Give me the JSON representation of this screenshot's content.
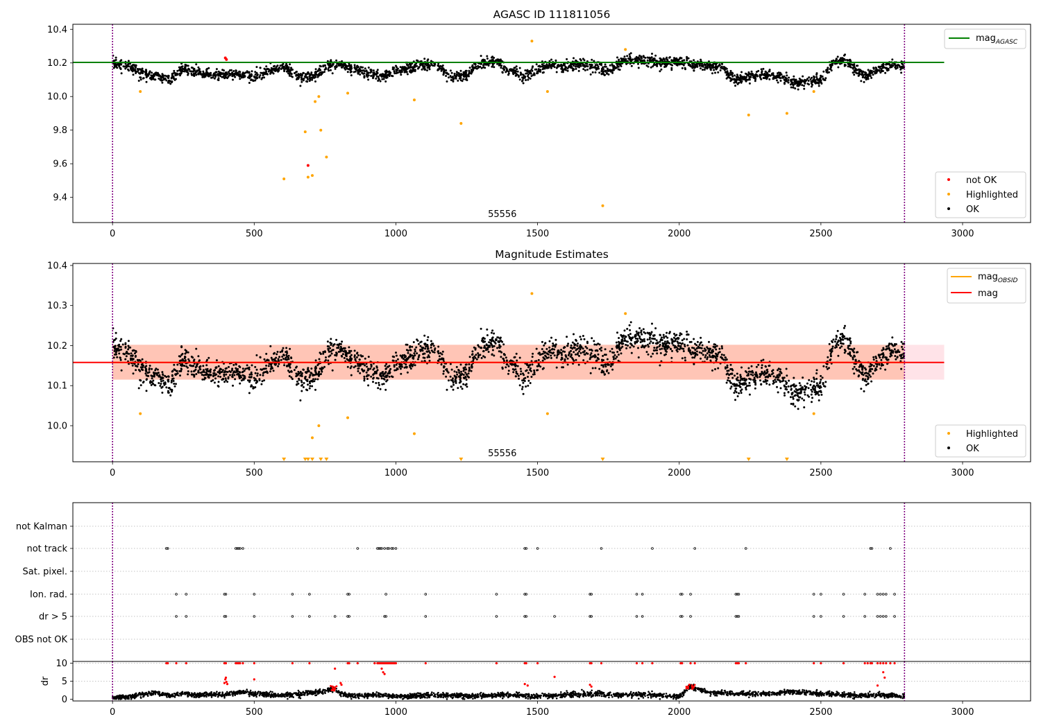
{
  "figure": {
    "colors": {
      "ok": "#000000",
      "highlighted": "#ffa500",
      "not_ok": "#ff0000",
      "agasc_line": "#008000",
      "obsid_line": "#ffa500",
      "mag_line": "#ff0000",
      "band_pink": "#ffc0cb",
      "band_orange": "#ffa07a",
      "obs_boundary": "#800080"
    }
  },
  "chart_data": [
    {
      "type": "scatter",
      "title": "AGASC ID 111811056",
      "xlabel": "",
      "ylabel": "",
      "xlim": [
        -140,
        3240
      ],
      "ylim": [
        9.25,
        10.43
      ],
      "xticks": [
        0,
        500,
        1000,
        1500,
        2000,
        2500,
        3000
      ],
      "yticks": [
        9.4,
        9.6,
        9.8,
        10.0,
        10.2,
        10.4
      ],
      "ytick_labels": [
        "9.4",
        "9.6",
        "9.8",
        "10.0",
        "10.2",
        "10.4"
      ],
      "obs_boundaries": [
        0,
        2795
      ],
      "obsid_annotation": {
        "text": "55556",
        "x": 1400
      },
      "reference_lines": [
        {
          "name": "mag_AGASC",
          "y": 10.203,
          "x0": -140,
          "x1": 2935
        }
      ],
      "ok_trend": {
        "x": [
          0,
          50,
          100,
          150,
          200,
          250,
          300,
          350,
          400,
          450,
          500,
          550,
          600,
          650,
          700,
          750,
          800,
          850,
          900,
          950,
          1000,
          1050,
          1100,
          1150,
          1200,
          1250,
          1300,
          1350,
          1400,
          1450,
          1500,
          1550,
          1600,
          1650,
          1700,
          1750,
          1800,
          1850,
          1900,
          1950,
          2000,
          2050,
          2100,
          2150,
          2200,
          2250,
          2300,
          2350,
          2400,
          2450,
          2500,
          2550,
          2600,
          2650,
          2700,
          2750,
          2795
        ],
        "y": [
          10.2,
          10.19,
          10.14,
          10.12,
          10.1,
          10.17,
          10.14,
          10.13,
          10.13,
          10.13,
          10.12,
          10.15,
          10.18,
          10.12,
          10.11,
          10.17,
          10.19,
          10.16,
          10.14,
          10.12,
          10.15,
          10.17,
          10.19,
          10.18,
          10.11,
          10.13,
          10.2,
          10.21,
          10.16,
          10.12,
          10.16,
          10.19,
          10.17,
          10.2,
          10.17,
          10.15,
          10.22,
          10.22,
          10.21,
          10.2,
          10.21,
          10.19,
          10.18,
          10.17,
          10.1,
          10.12,
          10.13,
          10.12,
          10.08,
          10.09,
          10.1,
          10.21,
          10.2,
          10.12,
          10.16,
          10.19,
          10.17
        ],
        "spread": 0.016,
        "n_points": 2700
      },
      "series": [
        {
          "name": "not OK",
          "x": [
            398,
            402,
            690
          ],
          "y": [
            10.23,
            10.22,
            9.59
          ]
        },
        {
          "name": "Highlighted",
          "x": [
            98,
            605,
            680,
            690,
            705,
            715,
            728,
            735,
            755,
            830,
            1065,
            1230,
            1480,
            1535,
            1730,
            1810,
            2245,
            2380,
            2475
          ],
          "y": [
            10.03,
            9.51,
            9.79,
            9.52,
            9.53,
            9.97,
            10.0,
            9.8,
            9.64,
            10.02,
            9.98,
            9.84,
            10.33,
            10.03,
            9.35,
            10.28,
            9.89,
            9.9,
            10.03
          ]
        }
      ],
      "legends": [
        {
          "entries": [
            "mag$_{AGASC}$"
          ],
          "position": "upper right"
        },
        {
          "entries": [
            "not OK",
            "Highlighted",
            "OK"
          ],
          "position": "lower right"
        }
      ]
    },
    {
      "type": "scatter",
      "title": "Magnitude Estimates",
      "xlabel": "",
      "ylabel": "",
      "xlim": [
        -140,
        3240
      ],
      "ylim": [
        9.91,
        10.405
      ],
      "xticks": [
        0,
        500,
        1000,
        1500,
        2000,
        2500,
        3000
      ],
      "yticks": [
        10.0,
        10.1,
        10.2,
        10.3,
        10.4
      ],
      "ytick_labels": [
        "10.0",
        "10.1",
        "10.2",
        "10.3",
        "10.4"
      ],
      "obs_boundaries": [
        0,
        2795
      ],
      "obsid_annotation": {
        "text": "55556",
        "x": 1400
      },
      "reference_lines": [
        {
          "name": "mag",
          "y": 10.158,
          "x0": -140,
          "x1": 2935
        }
      ],
      "mag_band": {
        "x0": 0,
        "x1": 2935,
        "y0": 10.115,
        "y1": 10.202
      },
      "obsid_band": {
        "x0": 0,
        "x1": 2795,
        "y0": 10.115,
        "y1": 10.202
      },
      "obsid_line": {
        "y": 10.158,
        "x0": 0,
        "x1": 2795
      },
      "ok_trend": {
        "x": [
          0,
          50,
          100,
          150,
          200,
          250,
          300,
          350,
          400,
          450,
          500,
          550,
          600,
          650,
          700,
          750,
          800,
          850,
          900,
          950,
          1000,
          1050,
          1100,
          1150,
          1200,
          1250,
          1300,
          1350,
          1400,
          1450,
          1500,
          1550,
          1600,
          1650,
          1700,
          1750,
          1800,
          1850,
          1900,
          1950,
          2000,
          2050,
          2100,
          2150,
          2200,
          2250,
          2300,
          2350,
          2400,
          2450,
          2500,
          2550,
          2600,
          2650,
          2700,
          2750,
          2795
        ],
        "y": [
          10.2,
          10.19,
          10.14,
          10.12,
          10.1,
          10.17,
          10.14,
          10.13,
          10.13,
          10.13,
          10.12,
          10.15,
          10.18,
          10.12,
          10.11,
          10.17,
          10.19,
          10.16,
          10.14,
          10.12,
          10.15,
          10.17,
          10.19,
          10.18,
          10.11,
          10.13,
          10.2,
          10.21,
          10.16,
          10.12,
          10.16,
          10.19,
          10.17,
          10.2,
          10.17,
          10.15,
          10.22,
          10.22,
          10.21,
          10.2,
          10.21,
          10.19,
          10.18,
          10.17,
          10.1,
          10.12,
          10.13,
          10.12,
          10.08,
          10.09,
          10.1,
          10.21,
          10.2,
          10.12,
          10.16,
          10.19,
          10.17
        ],
        "spread": 0.016,
        "n_points": 2700
      },
      "series": [
        {
          "name": "Highlighted",
          "x": [
            98,
            705,
            728,
            830,
            1065,
            1480,
            1535,
            1810,
            2475
          ],
          "y": [
            10.03,
            9.97,
            10.0,
            10.02,
            9.98,
            10.33,
            10.03,
            10.28,
            10.03
          ]
        },
        {
          "name": "Highlighted (below axis)",
          "x": [
            605,
            680,
            690,
            705,
            735,
            755,
            1230,
            1730,
            2245,
            2380
          ],
          "y": [
            9.91,
            9.91,
            9.91,
            9.91,
            9.91,
            9.91,
            9.91,
            9.91,
            9.91,
            9.91
          ]
        }
      ],
      "legends": [
        {
          "entries": [
            "mag$_{OBSID}$",
            "mag"
          ],
          "position": "upper right"
        },
        {
          "entries": [
            "Highlighted",
            "OK"
          ],
          "position": "lower right"
        }
      ]
    },
    {
      "type": "scatter",
      "title": "",
      "xlabel": "",
      "ylabel": "",
      "xlim": [
        -140,
        3240
      ],
      "xticks": [
        0,
        500,
        1000,
        1500,
        2000,
        2500,
        3000
      ],
      "obs_boundaries": [
        0,
        2795
      ],
      "categories": [
        "not Kalman",
        "not track",
        "Sat. pixel.",
        "Ion. rad.",
        "dr > 5",
        "OBS not OK"
      ],
      "flags": [
        {
          "category": "not Kalman",
          "x": []
        },
        {
          "category": "not track",
          "x": [
            190,
            195,
            435,
            440,
            445,
            450,
            460,
            865,
            935,
            940,
            945,
            950,
            960,
            970,
            975,
            985,
            990,
            1000,
            1455,
            1460,
            1500,
            1725,
            1905,
            2055,
            2235,
            2675,
            2680,
            2745
          ]
        },
        {
          "category": "Sat. pixel.",
          "x": []
        },
        {
          "category": "Ion. rad.",
          "x": [
            225,
            260,
            395,
            400,
            500,
            635,
            695,
            830,
            835,
            965,
            1105,
            1355,
            1455,
            1460,
            1685,
            1690,
            1850,
            1870,
            2005,
            2010,
            2040,
            2200,
            2205,
            2210,
            2475,
            2500,
            2580,
            2655,
            2700,
            2710,
            2720,
            2730,
            2760
          ]
        },
        {
          "category": "dr > 5",
          "x": [
            225,
            260,
            395,
            400,
            500,
            635,
            695,
            785,
            830,
            835,
            960,
            965,
            1105,
            1355,
            1455,
            1460,
            1560,
            1685,
            1690,
            1850,
            1870,
            2005,
            2010,
            2040,
            2200,
            2205,
            2210,
            2475,
            2500,
            2580,
            2655,
            2700,
            2710,
            2720,
            2730,
            2760
          ]
        },
        {
          "category": "OBS not OK",
          "x": []
        }
      ]
    },
    {
      "type": "scatter",
      "title": "",
      "xlabel": "",
      "ylabel": "dr",
      "xlim": [
        -140,
        3240
      ],
      "ylim": [
        -0.5,
        10.5
      ],
      "xticks": [
        0,
        500,
        1000,
        1500,
        2000,
        2500,
        3000
      ],
      "xtick_labels": [
        "0",
        "500",
        "1000",
        "1500",
        "2000",
        "2500",
        "3000"
      ],
      "yticks": [
        0,
        5,
        10
      ],
      "ytick_labels": [
        "0",
        "5",
        "10"
      ],
      "obs_boundaries": [
        0,
        2795
      ],
      "dr_trend": {
        "x": [
          0,
          50,
          100,
          150,
          200,
          250,
          300,
          350,
          400,
          450,
          500,
          550,
          600,
          650,
          700,
          750,
          780,
          800,
          850,
          900,
          950,
          1000,
          1100,
          1200,
          1300,
          1400,
          1500,
          1600,
          1700,
          1800,
          1900,
          2000,
          2040,
          2080,
          2100,
          2200,
          2300,
          2400,
          2500,
          2600,
          2700,
          2795
        ],
        "y": [
          0.5,
          0.6,
          1.2,
          1.8,
          1.0,
          1.6,
          1.0,
          1.4,
          1.2,
          2.0,
          1.6,
          1.2,
          1.0,
          1.3,
          1.8,
          2.2,
          3.0,
          1.6,
          0.8,
          1.1,
          1.2,
          0.7,
          1.1,
          1.0,
          0.9,
          1.2,
          0.7,
          1.2,
          1.5,
          1.2,
          1.2,
          0.8,
          3.5,
          2.5,
          1.8,
          1.6,
          1.4,
          2.0,
          1.6,
          1.0,
          1.2,
          0.7
        ],
        "spread": 0.35,
        "n_points": 2700
      },
      "series": [
        {
          "name": "dr > 5 (clipped)",
          "x": [
            190,
            195,
            225,
            260,
            395,
            400,
            435,
            440,
            445,
            450,
            460,
            500,
            635,
            695,
            830,
            835,
            865,
            925,
            935,
            940,
            945,
            950,
            955,
            960,
            965,
            970,
            975,
            980,
            985,
            990,
            995,
            1000,
            1105,
            1355,
            1455,
            1460,
            1500,
            1685,
            1690,
            1725,
            1850,
            1870,
            1905,
            2005,
            2010,
            2040,
            2055,
            2200,
            2205,
            2210,
            2235,
            2475,
            2500,
            2580,
            2655,
            2665,
            2675,
            2680,
            2700,
            2710,
            2720,
            2730,
            2745,
            2760
          ],
          "y": [
            10,
            10,
            10,
            10,
            10,
            10,
            10,
            10,
            10,
            10,
            10,
            10,
            10,
            10,
            10,
            10,
            10,
            10,
            10,
            10,
            10,
            10,
            10,
            10,
            10,
            10,
            10,
            10,
            10,
            10,
            10,
            10,
            10,
            10,
            10,
            10,
            10,
            10,
            10,
            10,
            10,
            10,
            10,
            10,
            10,
            10,
            10,
            10,
            10,
            10,
            10,
            10,
            10,
            10,
            10,
            10,
            10,
            10,
            10,
            10,
            10,
            10,
            10,
            10
          ]
        },
        {
          "name": "dr mid",
          "x": [
            395,
            398,
            400,
            402,
            405,
            500,
            785,
            805,
            808,
            950,
            955,
            960,
            1455,
            1465,
            1560,
            1685,
            1690,
            2720,
            2725,
            2700
          ],
          "y": [
            4.5,
            5.5,
            6.0,
            4.8,
            4.2,
            5.5,
            8.5,
            4.5,
            4.0,
            8.5,
            7.5,
            7.0,
            4.2,
            3.8,
            6.2,
            4.0,
            3.5,
            7.5,
            6.0,
            3.8
          ]
        }
      ]
    }
  ]
}
